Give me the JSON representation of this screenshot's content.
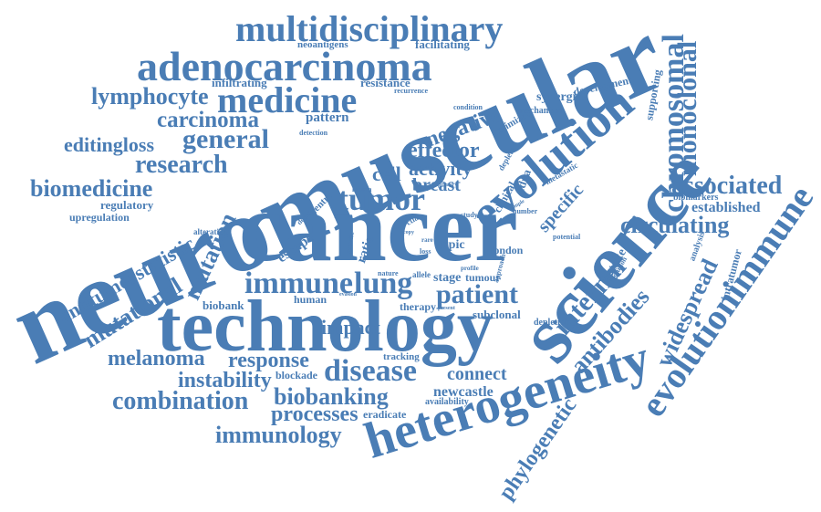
{
  "cloud": {
    "color": "#4a7db5",
    "words": [
      "neuromuscular",
      "cancer",
      "technology",
      "science",
      "heterogeneity",
      "evolution",
      "adenocarcinoma",
      "multidisciplinary",
      "medicine",
      "chromosomal",
      "monoclonal",
      "evolutionimmune",
      "tumor",
      "immune",
      "lung",
      "patient",
      "disease",
      "mutational",
      "antitumorstatistic",
      "biomedicine",
      "research",
      "general",
      "carcinoma",
      "lymphocyte",
      "editingloss",
      "negative",
      "effector",
      "activity",
      "cell",
      "breast",
      "associated",
      "circulating",
      "internal",
      "antibodies",
      "widespread",
      "phylogenetic",
      "combination",
      "immunology",
      "processes",
      "biobanking",
      "instability",
      "melanoma",
      "response",
      "impact",
      "mutation",
      "connect",
      "newcastle",
      "specific",
      "established",
      "biomarkers",
      "regulatory",
      "upregulation",
      "infiltrating",
      "resistance",
      "neoantigens",
      "facilitating",
      "pattern",
      "synergize",
      "development",
      "supporting",
      "uptake",
      "escape",
      "ratio",
      "topic",
      "stage",
      "tumour",
      "london",
      "subclonal",
      "biobank",
      "human",
      "therapy",
      "tracking",
      "blockade",
      "eradicate",
      "availability",
      "depletion",
      "potential",
      "analysis",
      "intratumor",
      "evolution",
      "mechanism",
      "condition",
      "recurrence",
      "detection",
      "optimized",
      "deplete",
      "metastatic",
      "clinical",
      "approach",
      "nature",
      "allele",
      "profile",
      "centre",
      "lobbla",
      "depict",
      "study",
      "number",
      "alteration",
      "cdna",
      "ctla",
      "evasion",
      "present",
      "primary",
      "sample",
      "genetic",
      "copy",
      "rare",
      "loss"
    ]
  }
}
